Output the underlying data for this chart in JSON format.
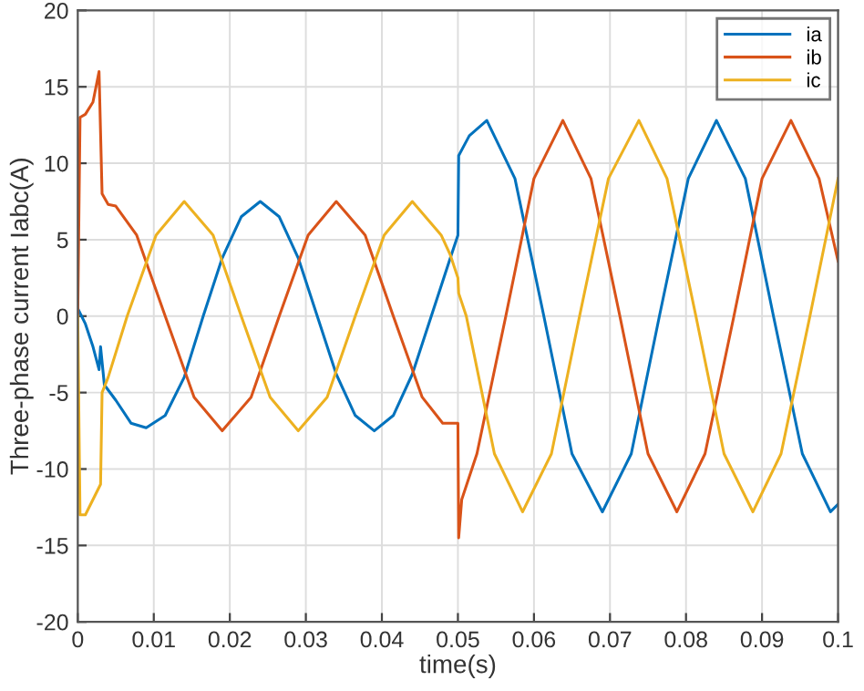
{
  "chart_data": {
    "type": "line",
    "xlabel": "time(s)",
    "ylabel": "Three-phase current Iabc(A)",
    "xlim": [
      0,
      0.1
    ],
    "ylim": [
      -20,
      20
    ],
    "xticks": [
      0,
      0.01,
      0.02,
      0.03,
      0.04,
      0.05,
      0.06,
      0.07,
      0.08,
      0.09,
      0.1
    ],
    "yticks": [
      -20,
      -15,
      -10,
      -5,
      0,
      5,
      10,
      15,
      20
    ],
    "grid": true,
    "legend": "top right",
    "line_style": "solid",
    "marker": "none",
    "series": [
      {
        "name": "ia",
        "color": "#0072bd",
        "x": [
          0,
          0.001,
          0.002,
          0.0028,
          0.003,
          0.0035,
          0.005,
          0.007,
          0.009,
          0.0115,
          0.014,
          0.0165,
          0.019,
          0.0215,
          0.024,
          0.0265,
          0.029,
          0.0315,
          0.034,
          0.0365,
          0.039,
          0.0415,
          0.044,
          0.0465,
          0.049,
          0.05,
          0.0501,
          0.0515,
          0.0538,
          0.0575,
          0.0613,
          0.065,
          0.069,
          0.0728,
          0.0765,
          0.0803,
          0.084,
          0.0878,
          0.0915,
          0.0953,
          0.099,
          0.1
        ],
        "values": [
          0.5,
          -0.5,
          -2,
          -3.5,
          -2,
          -4.5,
          -5.5,
          -7,
          -7.3,
          -6.5,
          -4,
          0,
          3.8,
          6.5,
          7.5,
          6.5,
          3.8,
          0,
          -3.8,
          -6.5,
          -7.5,
          -6.5,
          -3.8,
          0,
          3.8,
          5.3,
          10.5,
          11.8,
          12.8,
          9,
          0,
          -9,
          -12.8,
          -9,
          0,
          9,
          12.8,
          9,
          0,
          -9,
          -12.8,
          -12.3
        ]
      },
      {
        "name": "ib",
        "color": "#d95319",
        "x": [
          0,
          0.0003,
          0.001,
          0.002,
          0.0028,
          0.0032,
          0.004,
          0.005,
          0.00775,
          0.0115,
          0.0153,
          0.019,
          0.0228,
          0.0265,
          0.0303,
          0.034,
          0.0378,
          0.0415,
          0.0453,
          0.048,
          0.05,
          0.0501,
          0.0505,
          0.0525,
          0.0563,
          0.06,
          0.0638,
          0.0675,
          0.0713,
          0.075,
          0.0788,
          0.0825,
          0.0863,
          0.09,
          0.0938,
          0.0975,
          0.1
        ],
        "values": [
          0,
          13,
          13.2,
          14,
          16,
          8,
          7.3,
          7.2,
          5.3,
          0,
          -5.3,
          -7.5,
          -5.3,
          0,
          5.3,
          7.5,
          5.3,
          0,
          -5.3,
          -7,
          -7,
          -14.5,
          -12,
          -9,
          0,
          9,
          12.8,
          9,
          0,
          -9,
          -12.8,
          -9,
          0,
          9,
          12.8,
          9,
          3.6
        ]
      },
      {
        "name": "ic",
        "color": "#edb120",
        "x": [
          0,
          0.0003,
          0.001,
          0.002,
          0.003,
          0.0032,
          0.004,
          0.0065,
          0.0103,
          0.014,
          0.0178,
          0.0215,
          0.0253,
          0.029,
          0.0328,
          0.0365,
          0.0403,
          0.044,
          0.0478,
          0.049,
          0.05,
          0.0501,
          0.0511,
          0.0548,
          0.0585,
          0.0623,
          0.066,
          0.0698,
          0.0738,
          0.0775,
          0.0813,
          0.085,
          0.0888,
          0.0925,
          0.0963,
          0.1
        ],
        "values": [
          0,
          -13,
          -13,
          -12,
          -11,
          -5,
          -4,
          0,
          5.3,
          7.5,
          5.3,
          0,
          -5.3,
          -7.5,
          -5.3,
          0,
          5.3,
          7.5,
          5.3,
          4,
          2.5,
          1.5,
          0,
          -9,
          -12.8,
          -9,
          0,
          9,
          12.8,
          9,
          0,
          -9,
          -12.8,
          -9,
          0,
          9
        ]
      }
    ]
  }
}
